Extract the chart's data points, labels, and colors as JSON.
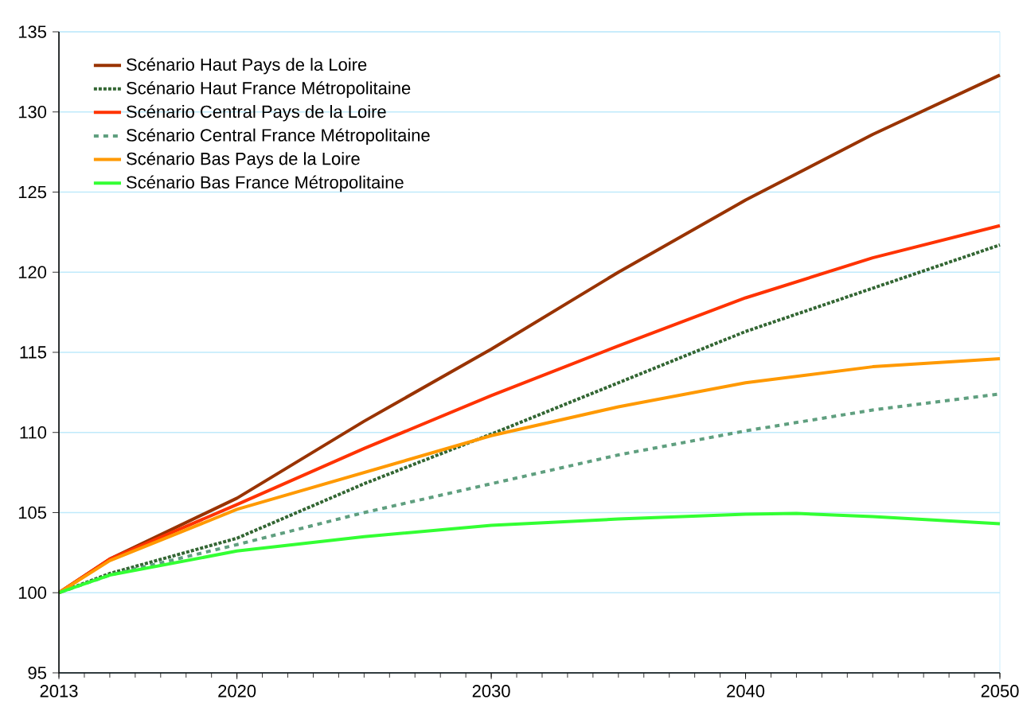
{
  "chart_data": {
    "type": "line",
    "xlim": [
      2013,
      2050
    ],
    "ylim": [
      95,
      135
    ],
    "xticks": [
      2013,
      2020,
      2030,
      2040,
      2050
    ],
    "yticks": [
      95,
      100,
      105,
      110,
      115,
      120,
      125,
      130,
      135
    ],
    "grid": "y",
    "legend": "top left",
    "marker": "none",
    "series": [
      {
        "name": "Scénario Haut Pays de la Loire",
        "color": "#993300",
        "line_style": "solid",
        "x": [
          2013,
          2015,
          2020,
          2025,
          2030,
          2035,
          2040,
          2045,
          2050
        ],
        "values": [
          100,
          102.1,
          105.9,
          110.7,
          115.2,
          120.0,
          124.5,
          128.6,
          132.3
        ]
      },
      {
        "name": "Scénario Haut France Métropolitaine",
        "color": "#336633",
        "line_style": "dotted",
        "x": [
          2013,
          2015,
          2020,
          2025,
          2030,
          2035,
          2040,
          2045,
          2050
        ],
        "values": [
          100,
          101.2,
          103.4,
          106.8,
          109.9,
          113.1,
          116.3,
          119.0,
          121.7
        ]
      },
      {
        "name": "Scénario Central Pays de la Loire",
        "color": "#ff3300",
        "line_style": "solid",
        "x": [
          2013,
          2015,
          2020,
          2025,
          2030,
          2035,
          2040,
          2045,
          2050
        ],
        "values": [
          100,
          102.1,
          105.5,
          109.0,
          112.3,
          115.4,
          118.4,
          120.9,
          122.9
        ]
      },
      {
        "name": "Scénario Central France Métropolitaine",
        "color": "#5f9f7f",
        "line_style": "dashed",
        "x": [
          2013,
          2015,
          2020,
          2025,
          2030,
          2035,
          2040,
          2045,
          2050
        ],
        "values": [
          100,
          101.1,
          103.0,
          105.0,
          106.8,
          108.6,
          110.1,
          111.4,
          112.4
        ]
      },
      {
        "name": "Scénario Bas Pays de la Loire",
        "color": "#ff9900",
        "line_style": "solid",
        "x": [
          2013,
          2015,
          2020,
          2025,
          2030,
          2035,
          2040,
          2045,
          2050
        ],
        "values": [
          100,
          102.0,
          105.2,
          107.5,
          109.8,
          111.6,
          113.1,
          114.1,
          114.6
        ]
      },
      {
        "name": "Scénario Bas France Métropolitaine",
        "color": "#33ff33",
        "line_style": "solid",
        "x": [
          2013,
          2015,
          2020,
          2025,
          2030,
          2035,
          2040,
          2042,
          2045,
          2050
        ],
        "values": [
          100,
          101.1,
          102.6,
          103.5,
          104.2,
          104.6,
          104.9,
          104.95,
          104.75,
          104.3
        ]
      }
    ]
  }
}
